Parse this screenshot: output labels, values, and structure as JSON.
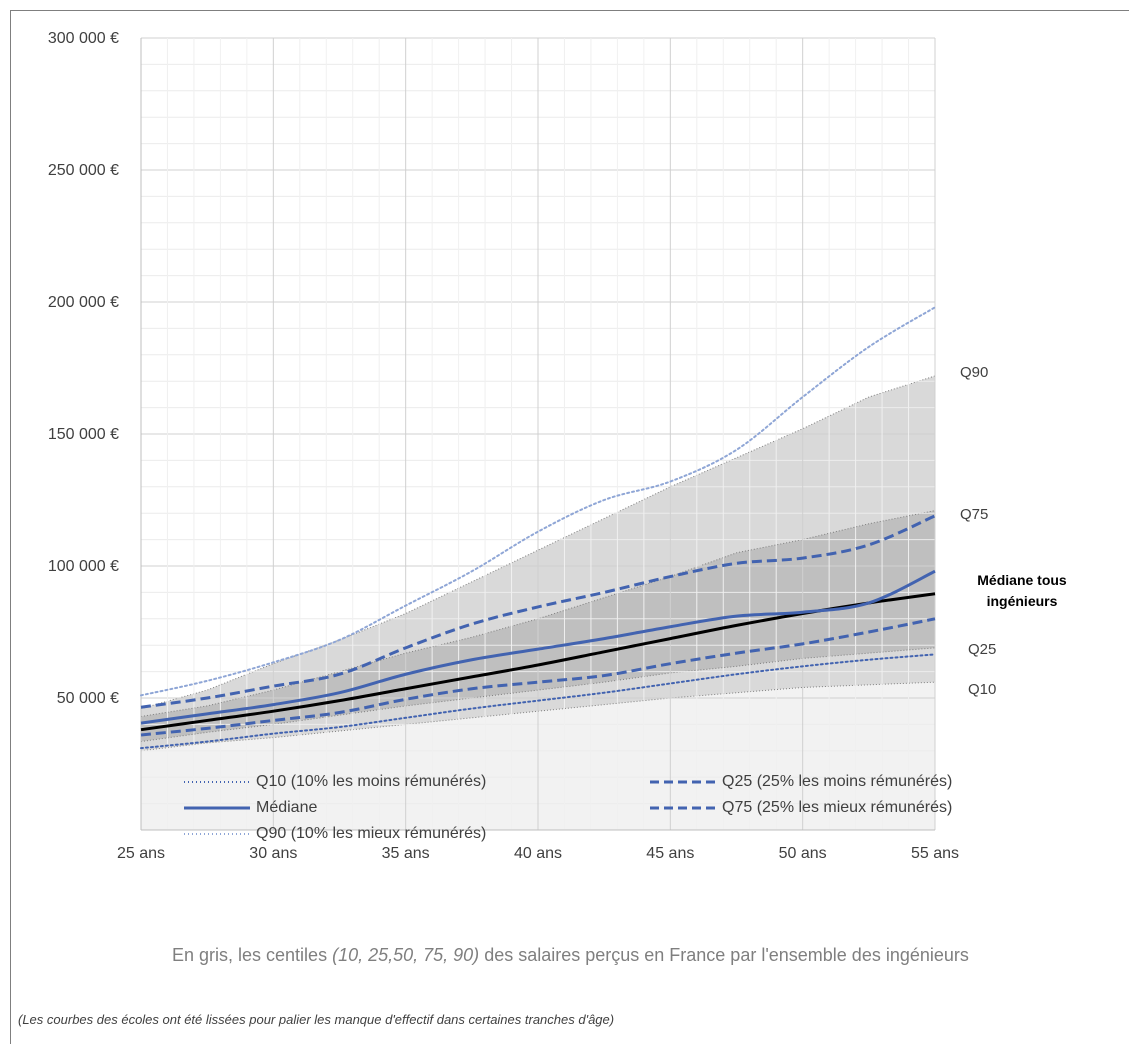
{
  "chart_data": {
    "type": "line",
    "x": [
      25,
      27.5,
      30,
      32.5,
      35,
      37.5,
      40,
      42.5,
      45,
      47.5,
      50,
      52.5,
      55
    ],
    "xticks": [
      {
        "value": 25,
        "label": "25  ans"
      },
      {
        "value": 30,
        "label": "30  ans"
      },
      {
        "value": 35,
        "label": "35  ans"
      },
      {
        "value": 40,
        "label": "40  ans"
      },
      {
        "value": 45,
        "label": "45  ans"
      },
      {
        "value": 50,
        "label": "50  ans"
      },
      {
        "value": 55,
        "label": "55  ans"
      }
    ],
    "yticks": [
      {
        "value": 50000,
        "label": "50 000 €"
      },
      {
        "value": 100000,
        "label": "100 000 €"
      },
      {
        "value": 150000,
        "label": "150 000 €"
      },
      {
        "value": 200000,
        "label": "200 000 €"
      },
      {
        "value": 250000,
        "label": "250 000 €"
      },
      {
        "value": 300000,
        "label": "300 000 €"
      }
    ],
    "xlim": [
      25,
      55
    ],
    "ylim": [
      0,
      300000
    ],
    "grid": true,
    "legend_position": "bottom",
    "bands": [
      {
        "name": "Q10",
        "label": "Q10",
        "color": "#f2f2f2",
        "values": [
          30000,
          33000,
          35000,
          37500,
          40000,
          42500,
          45000,
          47500,
          50000,
          52000,
          54000,
          55000,
          56000
        ]
      },
      {
        "name": "Q25",
        "label": "Q25",
        "color": "#d9d9d9",
        "values": [
          33500,
          37000,
          40000,
          43500,
          47000,
          50000,
          53000,
          56000,
          59500,
          62000,
          65000,
          67000,
          69000
        ]
      },
      {
        "name": "Q75",
        "label": "Q75",
        "color": "#bfbfbf",
        "values": [
          43000,
          47000,
          53000,
          60000,
          67000,
          73000,
          80000,
          88000,
          96000,
          105000,
          110000,
          116000,
          121000
        ]
      },
      {
        "name": "Q90",
        "label": "Q90",
        "color": "#d9d9d9",
        "values": [
          46000,
          53000,
          63000,
          72000,
          82000,
          94000,
          106000,
          118000,
          130000,
          141000,
          152000,
          164000,
          172000
        ]
      }
    ],
    "series": [
      {
        "name": "Médiane tous ingénieurs",
        "color": "#000000",
        "style": "solid",
        "values": [
          38000,
          41500,
          45000,
          49000,
          53500,
          58000,
          62500,
          67500,
          72500,
          77500,
          82000,
          86000,
          89500
        ]
      },
      {
        "name": "Q10 (10% les moins rémunérés)",
        "color": "#4263b0",
        "style": "dotted",
        "values": [
          31000,
          33500,
          36500,
          39000,
          42500,
          46000,
          49000,
          52000,
          55500,
          59000,
          62000,
          64500,
          66500
        ]
      },
      {
        "name": "Q25 (25% les moins rémunérés)",
        "color": "#4263b0",
        "style": "dashed",
        "values": [
          36000,
          38500,
          41500,
          44500,
          49500,
          53500,
          56000,
          58500,
          63000,
          67000,
          70500,
          75000,
          80000
        ]
      },
      {
        "name": "Médiane",
        "color": "#4263b0",
        "style": "solid",
        "values": [
          40500,
          44000,
          47500,
          52000,
          59000,
          64500,
          68500,
          72500,
          77000,
          81000,
          82500,
          86000,
          98000
        ]
      },
      {
        "name": "Q75 (25% les mieux rémunérés)",
        "color": "#4263b0",
        "style": "dashed",
        "values": [
          46500,
          50000,
          54500,
          59000,
          69000,
          78000,
          84500,
          90000,
          96000,
          101000,
          103000,
          108000,
          119000
        ]
      },
      {
        "name": "Q90 (10% les mieux rémunérés)",
        "color": "#8fa6d6",
        "style": "dotted",
        "values": [
          51000,
          56500,
          63500,
          72000,
          85000,
          98000,
          113000,
          125000,
          132000,
          144000,
          164000,
          183000,
          198000
        ]
      }
    ],
    "end_labels": [
      {
        "label": "Q90",
        "value": 172000
      },
      {
        "label": "Q75",
        "value": 121000
      },
      {
        "label_lines": [
          "Médiane tous",
          "ingénieurs"
        ],
        "value": 89500
      },
      {
        "label": "Q25",
        "value": 69000
      },
      {
        "label": "Q10",
        "value": 56000
      }
    ]
  },
  "legend": [
    {
      "label": "Q10 (10% les moins rémunérés)",
      "style": "dotted",
      "color": "#4263b0"
    },
    {
      "label": "Q25 (25% les moins rémunérés)",
      "style": "dashed",
      "color": "#4263b0"
    },
    {
      "label": "Médiane",
      "style": "solid",
      "color": "#4263b0"
    },
    {
      "label": "Q75 (25% les mieux rémunérés)",
      "style": "dashed",
      "color": "#4263b0"
    },
    {
      "label": "Q90 (10% les mieux rémunérés)",
      "style": "dotted",
      "color": "#8fa6d6"
    }
  ],
  "note": {
    "prefix": "En gris, les centiles ",
    "italic": "(10, 25,50, 75, 90)",
    "suffix": " des salaires perçus en France par l'ensemble des ingénieurs"
  },
  "footnote": "(Les courbes des écoles ont été lissées pour palier les manque d'effectif dans certaines tranches d'âge)"
}
